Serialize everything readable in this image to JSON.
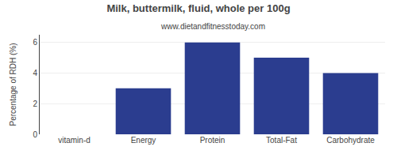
{
  "chart_data": {
    "type": "bar",
    "title": "Milk, buttermilk, fluid, whole per 100g",
    "subtitle": "www.dietandfitnesstoday.com",
    "categories": [
      "vitamin-d",
      "Energy",
      "Protein",
      "Total-Fat",
      "Carbohydrate"
    ],
    "values": [
      0,
      3,
      6,
      5,
      4
    ],
    "color": "#2b3d8f",
    "ylabel": "Percentage of RDH (%)",
    "ylim": [
      0,
      6.5
    ],
    "yticks": [
      0,
      2,
      4,
      6
    ],
    "grid": true
  }
}
